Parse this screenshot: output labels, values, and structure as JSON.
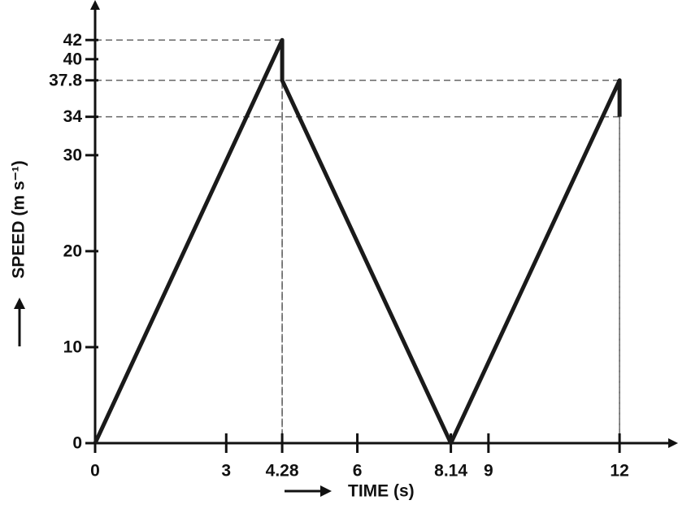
{
  "chart_data": {
    "type": "line",
    "x": [
      0,
      4.28,
      4.28,
      8.14,
      12,
      12
    ],
    "values": [
      0,
      42,
      37.8,
      0,
      37.8,
      34
    ],
    "color": "#1a1a1a",
    "xlabel": "TIME (s)",
    "ylabel": "SPEED (m s⁻¹)",
    "xlim": [
      0,
      13.3
    ],
    "ylim": [
      0,
      46
    ],
    "xticks": [
      0,
      3,
      4.28,
      6,
      8.14,
      9,
      12
    ],
    "yticks": [
      0,
      10,
      20,
      30,
      34,
      37.8,
      40,
      42
    ]
  }
}
